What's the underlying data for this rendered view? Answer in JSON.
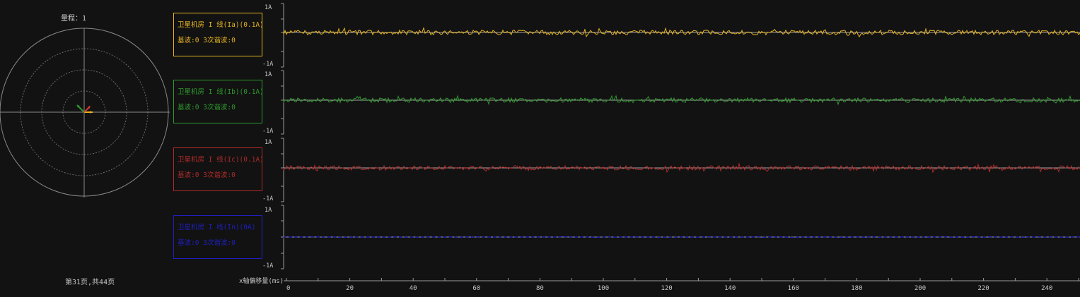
{
  "polar": {
    "range_label": "量程：1",
    "vectors": [
      {
        "name": "Ia",
        "color": "#e6b422",
        "magnitude": 0.05,
        "angle_deg": 0
      },
      {
        "name": "Ib",
        "color": "#2e9a2e",
        "magnitude": 0.06,
        "angle_deg": 135
      },
      {
        "name": "Ic",
        "color": "#d43a2a",
        "magnitude": 0.05,
        "angle_deg": 45
      }
    ]
  },
  "channels": [
    {
      "label": "卫星机房 I 线(Ia)(0.1A)",
      "harmonics": "基波:0 3次谐波:0",
      "color": "#e6b422",
      "ymax": "1A",
      "ymin": "-1A"
    },
    {
      "label": "卫星机房 I 线(Ib)(0.1A)",
      "harmonics": "基波:0 3次谐波:0",
      "color": "#2e9a2e",
      "ymax": "1A",
      "ymin": "-1A"
    },
    {
      "label": "卫星机房 I 线(Ic)(0.1A)",
      "harmonics": "基波:0 3次谐波:0",
      "color": "#b02a2a",
      "ymax": "1A",
      "ymin": "-1A"
    },
    {
      "label": "卫星机房 I 线(In)(0A)",
      "harmonics": "基波:0 3次谐波:0",
      "color": "#1f1fc0",
      "ymax": "1A",
      "ymin": "-1A"
    }
  ],
  "xaxis": {
    "label": "x轴偏移量(ms)",
    "ticks": [
      "0",
      "20",
      "40",
      "60",
      "80",
      "100",
      "120",
      "140",
      "160",
      "180",
      "200",
      "220",
      "240"
    ]
  },
  "pager": {
    "text": "第31页,共44页"
  }
}
